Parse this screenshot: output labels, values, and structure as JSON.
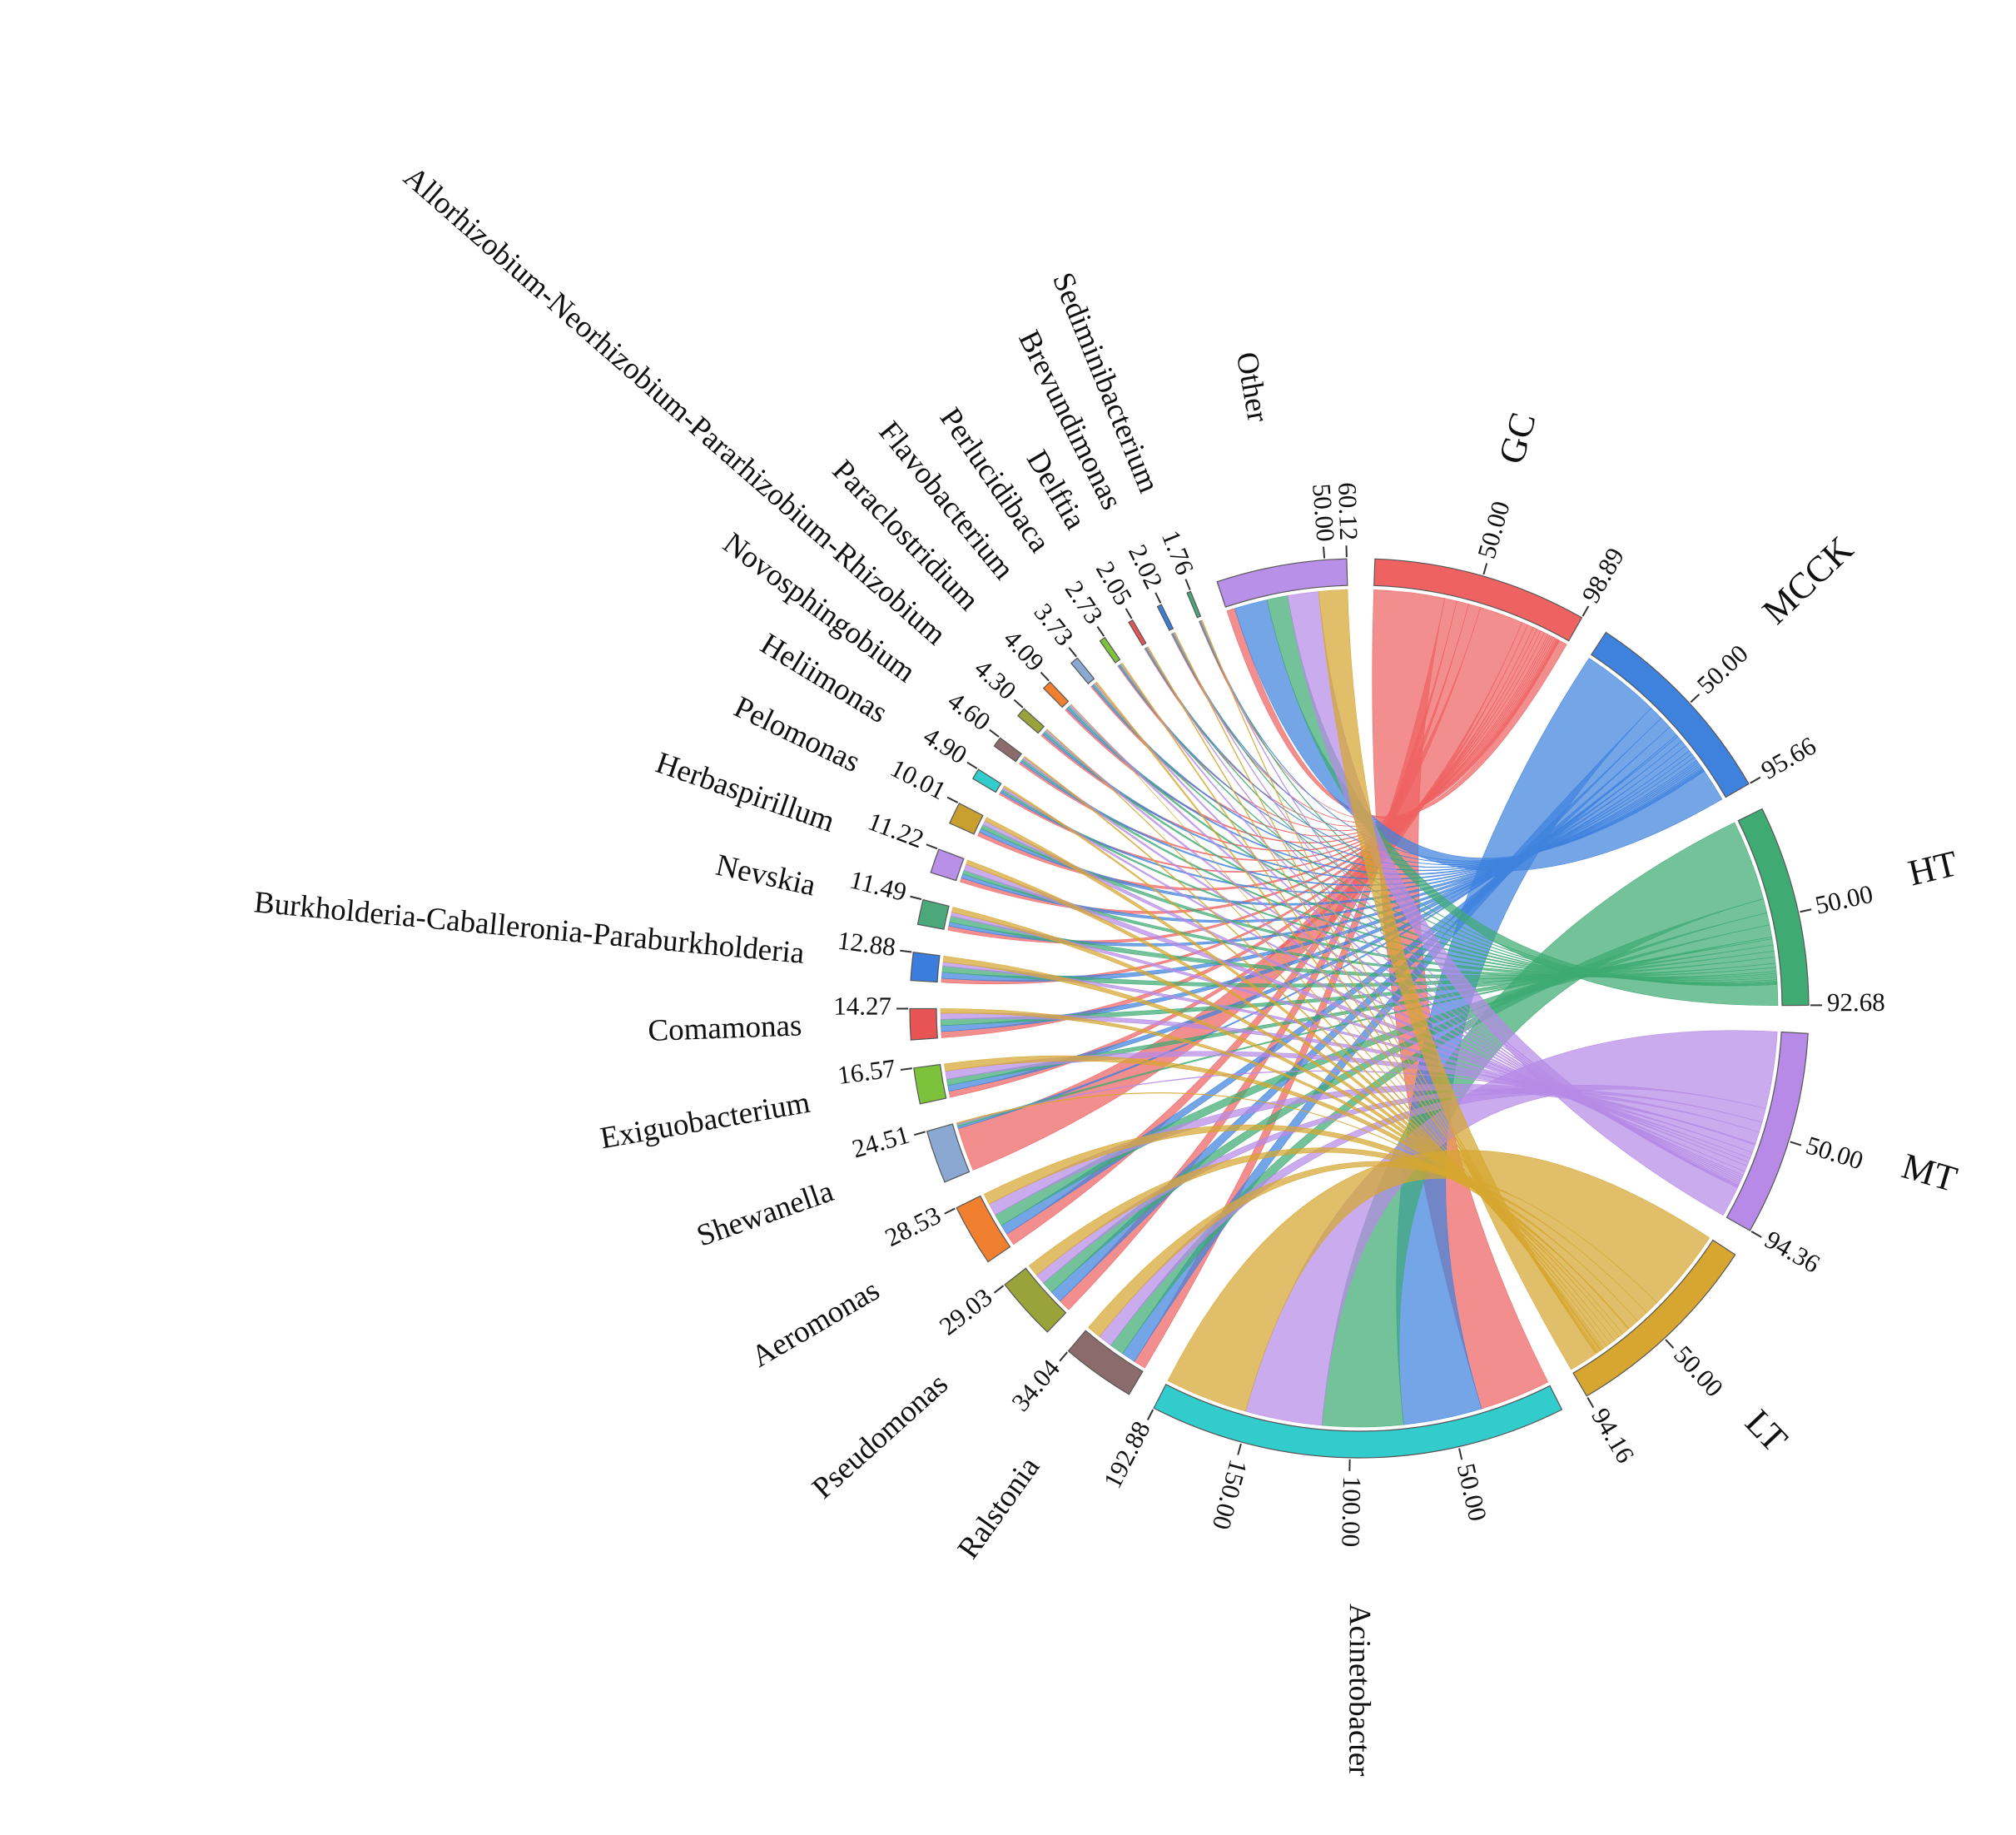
{
  "chart_data": {
    "type": "chord",
    "sources": {
      "names": [
        "GC",
        "MCCK",
        "HT",
        "MT",
        "LT"
      ],
      "values": [
        98.89,
        95.66,
        92.68,
        94.36,
        94.16
      ],
      "colors": [
        "#ef6262",
        "#3f82de",
        "#3fab73",
        "#b68ae6",
        "#d6a630"
      ]
    },
    "targets": {
      "names": [
        "Acinetobacter",
        "Ralstonia",
        "Pseudomonas",
        "Aeromonas",
        "Shewanella",
        "Exiguobacterium",
        "Comamonas",
        "Burkholderia-Caballeronia-Paraburkholderia",
        "Nevskia",
        "Herbaspirillum",
        "Pelomonas",
        "Heliimonas",
        "Novosphingobium",
        "Allorhizobium-Neorhizobium-Pararhizobium-Rhizobium",
        "Paraclostridium",
        "Flavobacterium",
        "Perlucidibaca",
        "Delftia",
        "Brevundimonas",
        "Sediminibacterium",
        "Other"
      ],
      "values": [
        192.88,
        34.04,
        29.03,
        28.53,
        24.51,
        16.57,
        14.27,
        12.88,
        11.49,
        11.22,
        10.01,
        4.9,
        4.6,
        4.3,
        4.09,
        3.73,
        2.73,
        2.05,
        2.02,
        1.76,
        60.12
      ],
      "value_labels": [
        "192.88",
        "34.04",
        "29.03",
        "28.53",
        "24.51",
        "16.57",
        "14.27",
        "12.88",
        "11.49",
        "11.22",
        "10.01",
        "4.90",
        "4.60",
        "4.30",
        "4.09",
        "3.73",
        "2.73",
        "2.05",
        "2.02",
        "1.76",
        "60.12"
      ],
      "colors": [
        "#33cccc",
        "#8b6b6b",
        "#9aa33a",
        "#f08030",
        "#8aa8d2",
        "#7cc23a",
        "#e85454",
        "#3a7ddd",
        "#4aa87a",
        "#b890e8",
        "#c9a030",
        "#33cccc",
        "#8b6b6b",
        "#9aa33a",
        "#f08030",
        "#8aa8d2",
        "#7cc23a",
        "#e85454",
        "#3a7ddd",
        "#4aa87a",
        "#b890e8"
      ]
    },
    "flows": [
      [
        35,
        6,
        6,
        6,
        21.59,
        3,
        3,
        2,
        2,
        2,
        2,
        1,
        1,
        1,
        1,
        0.7,
        0.5,
        0.4,
        0.4,
        0.3,
        4
      ],
      [
        39,
        7,
        6,
        5,
        1,
        3,
        3,
        3,
        2,
        2,
        2,
        1,
        1,
        1,
        1,
        0.7,
        0.5,
        0.4,
        0.4,
        0.3,
        16.36
      ],
      [
        40,
        7,
        6,
        6,
        1,
        3,
        3,
        3,
        3,
        2,
        2,
        1,
        1,
        1,
        1,
        0.7,
        0.5,
        0.4,
        0.4,
        0.4,
        10.28
      ],
      [
        38,
        7,
        5,
        6,
        0.5,
        4,
        3,
        2,
        2,
        3,
        2,
        1,
        1,
        1,
        1,
        0.8,
        0.6,
        0.4,
        0.4,
        0.4,
        15.26
      ],
      [
        40.88,
        7.04,
        6.03,
        5.53,
        0.42,
        3.57,
        2.27,
        2.88,
        2.49,
        2.22,
        2.01,
        0.9,
        0.6,
        0.3,
        0.09,
        0.83,
        0.63,
        0.45,
        0.42,
        0.36,
        14.22
      ]
    ],
    "ticks": [
      {
        "value": 50,
        "label": "50.00"
      },
      {
        "value": 100,
        "label": "100.00"
      },
      {
        "value": 150,
        "label": "150.00"
      }
    ]
  }
}
